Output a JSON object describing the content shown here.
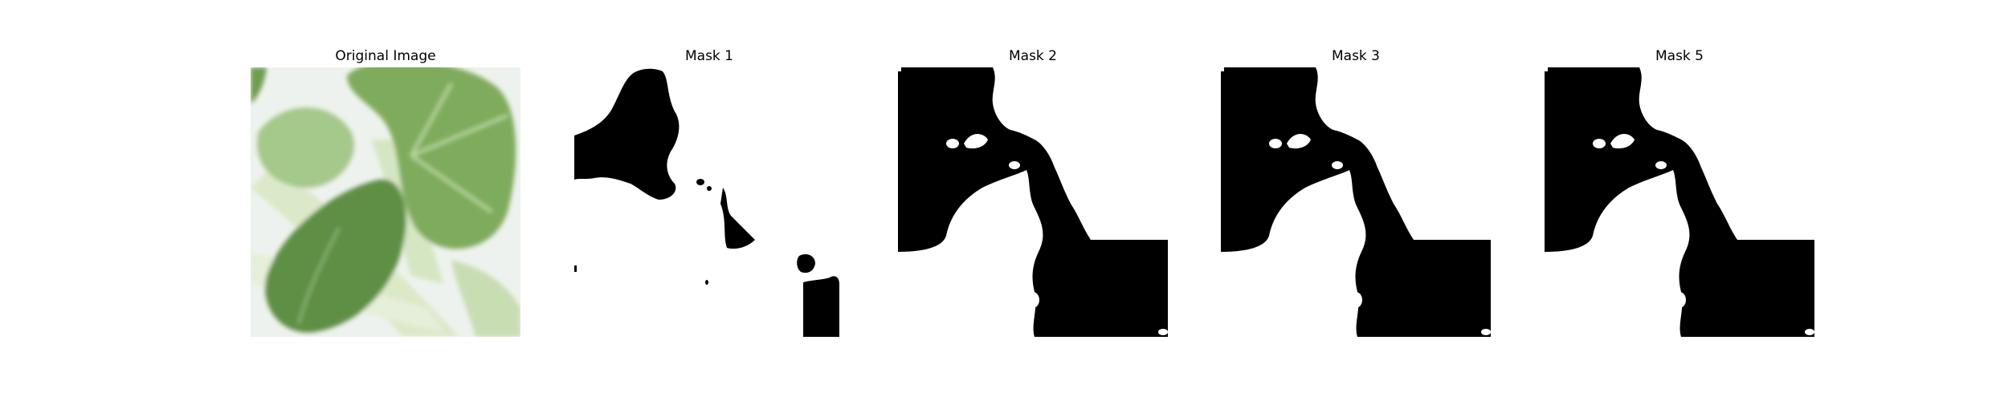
{
  "figure": {
    "panels": [
      {
        "title": "Original Image"
      },
      {
        "title": "Mask 1"
      },
      {
        "title": "Mask 2"
      },
      {
        "title": "Mask 3"
      },
      {
        "title": "Mask 5"
      }
    ],
    "colors": {
      "background": "#ffffff",
      "mask_foreground": "#ffffff",
      "mask_background": "#000000",
      "leaf_dark": "#5f8f45",
      "leaf_mid": "#7fac5c",
      "leaf_light": "#a5c88b",
      "stem": "#dbe9c8",
      "backdrop": "#eef2ee"
    }
  }
}
